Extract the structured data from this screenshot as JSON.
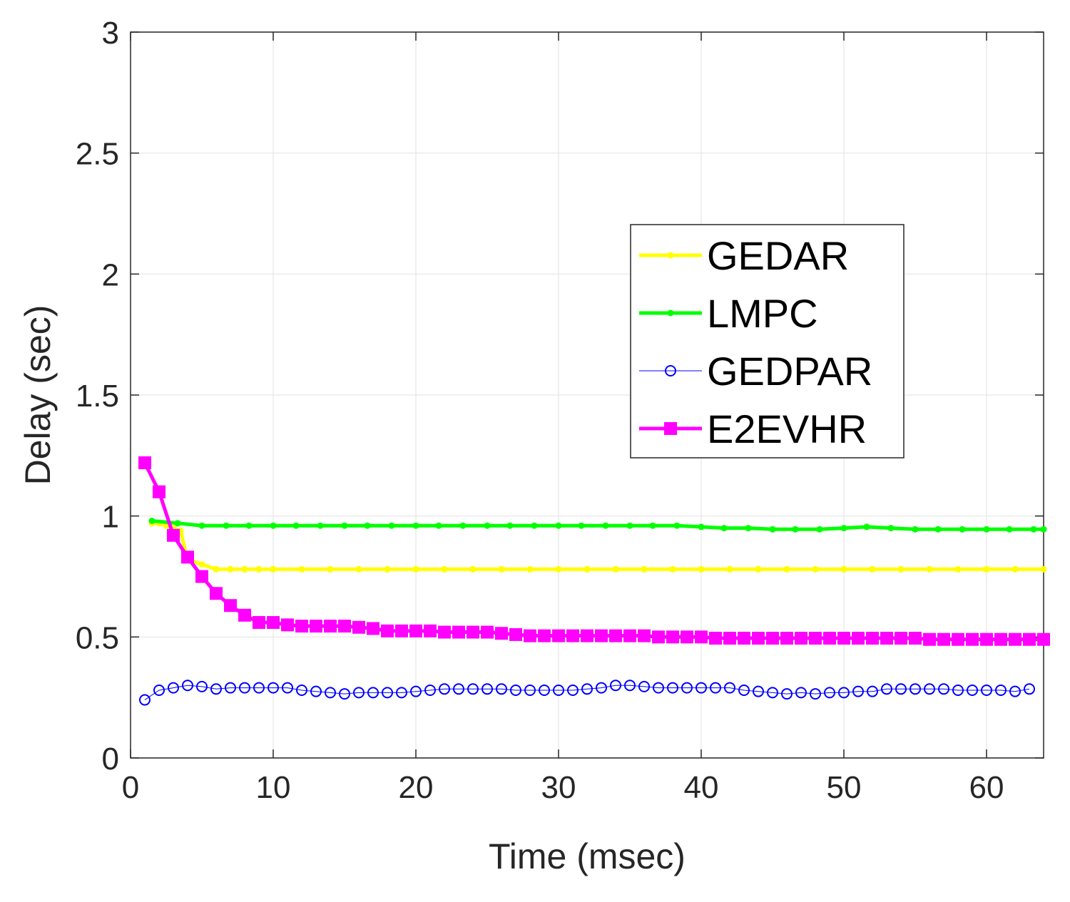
{
  "chart_data": {
    "type": "line",
    "xlabel": "Time (msec)",
    "ylabel": "Delay (sec)",
    "xlim": [
      0,
      64
    ],
    "ylim": [
      0,
      3
    ],
    "xticks": [
      0,
      10,
      20,
      30,
      40,
      50,
      60
    ],
    "yticks": [
      0,
      0.5,
      1,
      1.5,
      2,
      2.5,
      3
    ],
    "xtick_labels": [
      "0",
      "10",
      "20",
      "30",
      "40",
      "50",
      "60"
    ],
    "ytick_labels": [
      "0",
      "0.5",
      "1",
      "1.5",
      "2",
      "2.5",
      "3"
    ],
    "grid": true,
    "legend_position": "right-center",
    "series": [
      {
        "name": "GEDAR",
        "color": "#ffff00",
        "marker": "dot",
        "x": [
          1.5,
          2,
          2.5,
          3,
          3.5,
          4,
          5,
          6,
          7,
          8,
          9,
          10,
          12,
          14,
          16,
          18,
          20,
          22,
          24,
          26,
          28,
          30,
          32,
          34,
          36,
          38,
          40,
          42,
          44,
          46,
          48,
          50,
          52,
          54,
          56,
          58,
          60,
          62,
          64
        ],
        "values": [
          0.97,
          0.97,
          0.96,
          0.95,
          0.94,
          0.82,
          0.8,
          0.78,
          0.78,
          0.78,
          0.78,
          0.78,
          0.78,
          0.78,
          0.78,
          0.78,
          0.78,
          0.78,
          0.78,
          0.78,
          0.78,
          0.78,
          0.78,
          0.78,
          0.78,
          0.78,
          0.78,
          0.78,
          0.78,
          0.78,
          0.78,
          0.78,
          0.78,
          0.78,
          0.78,
          0.78,
          0.78,
          0.78,
          0.78
        ]
      },
      {
        "name": "LMPC",
        "color": "#00ff00",
        "marker": "dot",
        "x": [
          1.5,
          3.3,
          5,
          6.7,
          8.3,
          10,
          11.6,
          13.3,
          15,
          16.6,
          18.3,
          20,
          21.6,
          23.3,
          25,
          26.6,
          28.3,
          30,
          31.6,
          33.3,
          35,
          36.6,
          38.3,
          40,
          41.6,
          43.3,
          45,
          46.6,
          48.3,
          50,
          51.6,
          53.3,
          55,
          56.6,
          58.3,
          60,
          61.6,
          63.3,
          64
        ],
        "values": [
          0.98,
          0.97,
          0.96,
          0.96,
          0.96,
          0.96,
          0.96,
          0.96,
          0.96,
          0.96,
          0.96,
          0.96,
          0.96,
          0.96,
          0.96,
          0.96,
          0.96,
          0.96,
          0.96,
          0.96,
          0.96,
          0.96,
          0.96,
          0.955,
          0.95,
          0.95,
          0.945,
          0.945,
          0.945,
          0.95,
          0.955,
          0.95,
          0.945,
          0.945,
          0.945,
          0.945,
          0.945,
          0.945,
          0.945
        ]
      },
      {
        "name": "GEDPAR",
        "color": "#0000ff",
        "marker": "circle",
        "x": [
          1,
          2,
          3,
          4,
          5,
          6,
          7,
          8,
          9,
          10,
          11,
          12,
          13,
          14,
          15,
          16,
          17,
          18,
          19,
          20,
          21,
          22,
          23,
          24,
          25,
          26,
          27,
          28,
          29,
          30,
          31,
          32,
          33,
          34,
          35,
          36,
          37,
          38,
          39,
          40,
          41,
          42,
          43,
          44,
          45,
          46,
          47,
          48,
          49,
          50,
          51,
          52,
          53,
          54,
          55,
          56,
          57,
          58,
          59,
          60,
          61,
          62,
          63
        ],
        "values": [
          0.24,
          0.28,
          0.29,
          0.3,
          0.295,
          0.285,
          0.29,
          0.29,
          0.29,
          0.29,
          0.29,
          0.28,
          0.275,
          0.27,
          0.265,
          0.27,
          0.27,
          0.27,
          0.27,
          0.275,
          0.28,
          0.285,
          0.285,
          0.285,
          0.285,
          0.285,
          0.28,
          0.28,
          0.28,
          0.28,
          0.28,
          0.285,
          0.29,
          0.3,
          0.3,
          0.295,
          0.29,
          0.29,
          0.29,
          0.29,
          0.29,
          0.29,
          0.28,
          0.275,
          0.27,
          0.265,
          0.27,
          0.265,
          0.27,
          0.27,
          0.275,
          0.275,
          0.285,
          0.285,
          0.285,
          0.285,
          0.285,
          0.28,
          0.28,
          0.28,
          0.28,
          0.275,
          0.285
        ]
      },
      {
        "name": "E2EVHR",
        "color": "#ff00ff",
        "marker": "square",
        "x": [
          1,
          2,
          3,
          4,
          5,
          6,
          7,
          8,
          9,
          10,
          11,
          12,
          13,
          14,
          15,
          16,
          17,
          18,
          19,
          20,
          21,
          22,
          23,
          24,
          25,
          26,
          27,
          28,
          29,
          30,
          31,
          32,
          33,
          34,
          35,
          36,
          37,
          38,
          39,
          40,
          41,
          42,
          43,
          44,
          45,
          46,
          47,
          48,
          49,
          50,
          51,
          52,
          53,
          54,
          55,
          56,
          57,
          58,
          59,
          60,
          61,
          62,
          63,
          64
        ],
        "values": [
          1.22,
          1.1,
          0.92,
          0.83,
          0.75,
          0.68,
          0.63,
          0.59,
          0.56,
          0.56,
          0.55,
          0.545,
          0.545,
          0.545,
          0.545,
          0.54,
          0.535,
          0.525,
          0.525,
          0.525,
          0.525,
          0.52,
          0.52,
          0.52,
          0.52,
          0.515,
          0.51,
          0.505,
          0.505,
          0.505,
          0.505,
          0.505,
          0.505,
          0.505,
          0.505,
          0.505,
          0.5,
          0.5,
          0.5,
          0.5,
          0.495,
          0.495,
          0.495,
          0.495,
          0.495,
          0.495,
          0.495,
          0.495,
          0.495,
          0.495,
          0.495,
          0.495,
          0.495,
          0.495,
          0.495,
          0.49,
          0.49,
          0.49,
          0.49,
          0.49,
          0.49,
          0.49,
          0.49,
          0.49
        ]
      }
    ]
  }
}
